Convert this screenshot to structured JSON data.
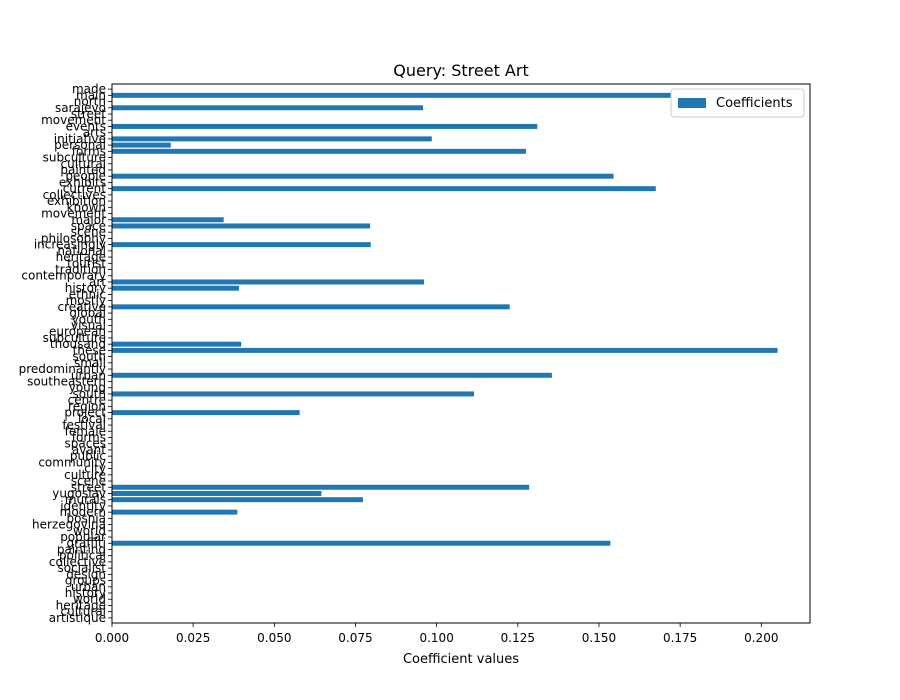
{
  "chart_data": {
    "type": "bar",
    "orientation": "horizontal",
    "title": "Query: Street Art",
    "xlabel": "Coefficient values",
    "ylabel": "",
    "xlim": [
      0.0,
      0.215
    ],
    "xticks": [
      "0.000",
      "0.025",
      "0.050",
      "0.075",
      "0.100",
      "0.125",
      "0.150",
      "0.175",
      "0.200"
    ],
    "legend": {
      "position": "top-right",
      "label": "Coefficients",
      "color": "#1f77b4"
    },
    "bar_color": "#1f77b4",
    "grid": false,
    "categories": [
      "artistique",
      "cultural",
      "heritage",
      "world",
      "history",
      "urban",
      "groups",
      "design",
      "socialist",
      "collective",
      "political",
      "painting",
      "graffiti",
      "popular",
      "world",
      "herzegovina",
      "bosnia",
      "modern",
      "identity",
      "murals",
      "yugoslav",
      "street",
      "scene",
      "culture",
      "city",
      "community",
      "public",
      "avant",
      "spaces",
      "forms",
      "female",
      "festival",
      "local",
      "project",
      "region",
      "centre",
      "south",
      "young",
      "southeastern",
      "urban",
      "predominantly",
      "small",
      "south",
      "these",
      "thousand",
      "subculture",
      "european",
      "visual",
      "youth",
      "global",
      "creative",
      "mostly",
      "ethnic",
      "history",
      "art",
      "contemporary",
      "tradition",
      "tourist",
      "heritage",
      "national",
      "increasingly",
      "philosophy",
      "scene",
      "space",
      "major",
      "movement",
      "known",
      "exhibition",
      "collectives",
      "current",
      "exhibits",
      "people",
      "painted",
      "cultural",
      "subculture",
      "forms",
      "personal",
      "initiative",
      "arts",
      "events",
      "movement",
      "street",
      "sarajevo",
      "north",
      "main",
      "made"
    ],
    "values": [
      0.0,
      0.0,
      0.0,
      0.0,
      0.0,
      0.0,
      0.0,
      0.0,
      0.0,
      0.0,
      0.0,
      0.0,
      0.1535,
      0.0,
      0.0,
      0.0,
      0.0,
      0.0386,
      0.0,
      0.0773,
      0.0645,
      0.1285,
      0.0,
      0.0,
      0.0,
      0.0,
      0.0,
      0.0,
      0.0,
      0.0,
      0.0,
      0.0,
      0.0,
      0.0578,
      0.0,
      0.0,
      0.1115,
      0.0,
      0.0,
      0.1355,
      0.0,
      0.0,
      0.0,
      0.205,
      0.0398,
      0.0,
      0.0,
      0.0,
      0.0,
      0.0,
      0.1225,
      0.0,
      0.0,
      0.0391,
      0.0961,
      0.0,
      0.0,
      0.0,
      0.0,
      0.0,
      0.0797,
      0.0,
      0.0,
      0.0795,
      0.0344,
      0.0,
      0.0,
      0.0,
      0.0,
      0.1675,
      0.0,
      0.1545,
      0.0,
      0.0,
      0.0,
      0.1275,
      0.0181,
      0.0985,
      0.0,
      0.131,
      0.0,
      0.0,
      0.0958,
      0.0,
      0.1985,
      0.0
    ]
  }
}
